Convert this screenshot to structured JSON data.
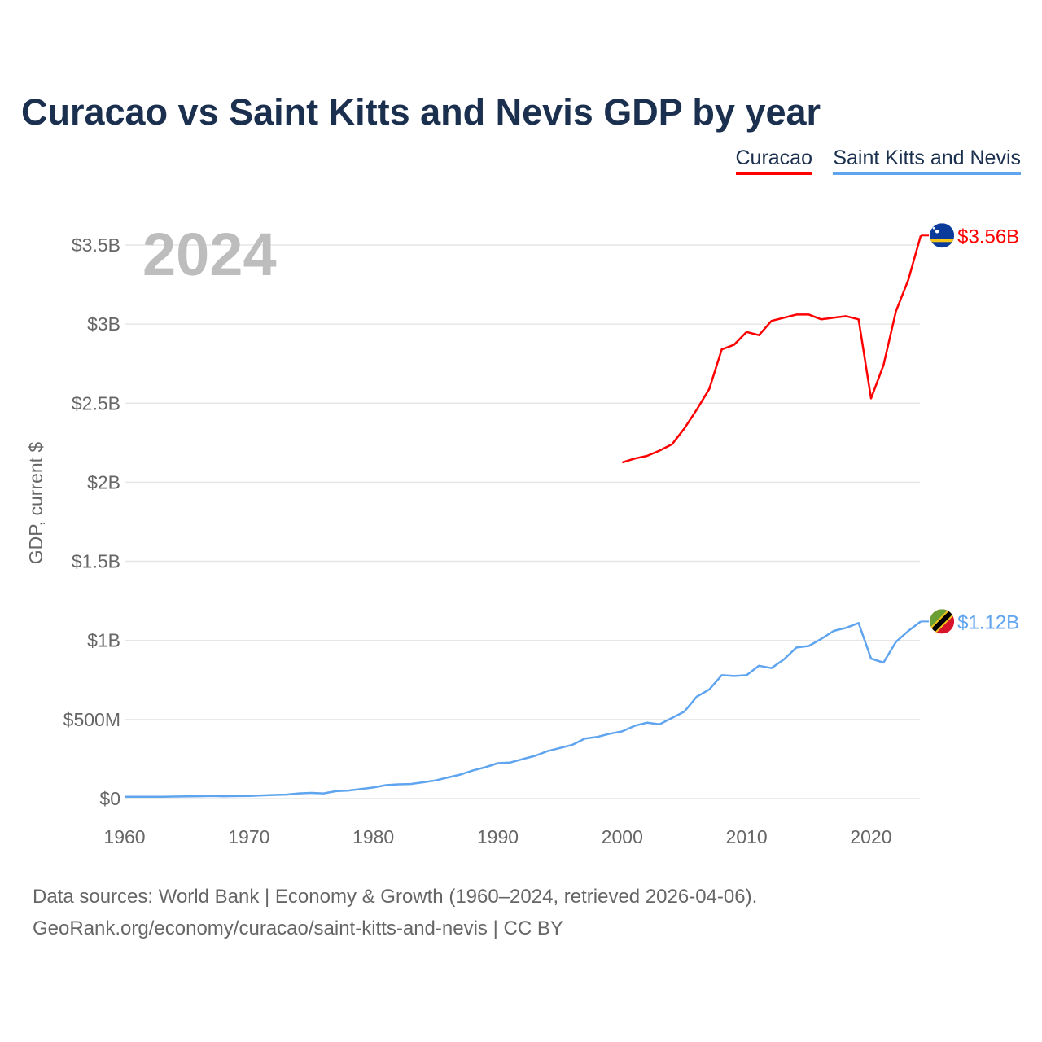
{
  "chart_data": {
    "type": "line",
    "title": "Curacao vs Saint Kitts and Nevis GDP by year",
    "ylabel": "GDP, current $",
    "xlabel": "",
    "year_label": "2024",
    "xlim": [
      1960,
      2024
    ],
    "ylim": [
      0,
      3.6
    ],
    "x_ticks": [
      1960,
      1970,
      1980,
      1990,
      2000,
      2010,
      2020
    ],
    "x_tick_labels": [
      "1960",
      "1970",
      "1980",
      "1990",
      "2000",
      "2010",
      "2020"
    ],
    "y_ticks": [
      0,
      0.5,
      1,
      1.5,
      2,
      2.5,
      3,
      3.5
    ],
    "y_tick_labels": [
      "$0",
      "$500M",
      "$1B",
      "$1.5B",
      "$2B",
      "$2.5B",
      "$3B",
      "$3.5B"
    ],
    "units": "billion USD",
    "grid": true,
    "legend_position": "top-right",
    "series": [
      {
        "name": "Curacao",
        "color": "#ff0000",
        "end_label": "$3.56B",
        "flag": "curacao-flag",
        "x": [
          2000,
          2001,
          2002,
          2003,
          2004,
          2005,
          2006,
          2007,
          2008,
          2009,
          2010,
          2011,
          2012,
          2013,
          2014,
          2015,
          2016,
          2017,
          2018,
          2019,
          2020,
          2021,
          2022,
          2023,
          2024
        ],
        "values": [
          2.125,
          2.15,
          2.167,
          2.2,
          2.24,
          2.34,
          2.46,
          2.59,
          2.84,
          2.87,
          2.95,
          2.93,
          3.02,
          3.04,
          3.06,
          3.06,
          3.03,
          3.04,
          3.05,
          3.03,
          2.53,
          2.74,
          3.08,
          3.28,
          3.56
        ]
      },
      {
        "name": "Saint Kitts and Nevis",
        "color": "#5fa4ee",
        "end_label": "$1.12B",
        "flag": "saint-kitts-and-nevis-flag",
        "x": [
          1960,
          1961,
          1962,
          1963,
          1964,
          1965,
          1966,
          1967,
          1968,
          1969,
          1970,
          1971,
          1972,
          1973,
          1974,
          1975,
          1976,
          1977,
          1978,
          1979,
          1980,
          1981,
          1982,
          1983,
          1984,
          1985,
          1986,
          1987,
          1988,
          1989,
          1990,
          1991,
          1992,
          1993,
          1994,
          1995,
          1996,
          1997,
          1998,
          1999,
          2000,
          2001,
          2002,
          2003,
          2004,
          2005,
          2006,
          2007,
          2008,
          2009,
          2010,
          2011,
          2012,
          2013,
          2014,
          2015,
          2016,
          2017,
          2018,
          2019,
          2020,
          2021,
          2022,
          2023,
          2024
        ],
        "values": [
          0.012,
          0.012,
          0.012,
          0.012,
          0.013,
          0.014,
          0.015,
          0.017,
          0.015,
          0.016,
          0.017,
          0.02,
          0.023,
          0.025,
          0.033,
          0.036,
          0.033,
          0.047,
          0.051,
          0.06,
          0.07,
          0.085,
          0.09,
          0.092,
          0.103,
          0.115,
          0.134,
          0.152,
          0.178,
          0.198,
          0.224,
          0.228,
          0.25,
          0.27,
          0.3,
          0.32,
          0.34,
          0.38,
          0.39,
          0.41,
          0.425,
          0.46,
          0.48,
          0.47,
          0.51,
          0.55,
          0.645,
          0.69,
          0.78,
          0.775,
          0.78,
          0.84,
          0.825,
          0.88,
          0.955,
          0.965,
          1.01,
          1.06,
          1.08,
          1.11,
          0.885,
          0.86,
          0.99,
          1.06,
          1.12
        ]
      }
    ]
  },
  "footer": {
    "line1": "Data sources: World Bank | Economy & Growth (1960–2024, retrieved 2026-04-06).",
    "line2": "GeoRank.org/economy/curacao/saint-kitts-and-nevis | CC BY"
  }
}
